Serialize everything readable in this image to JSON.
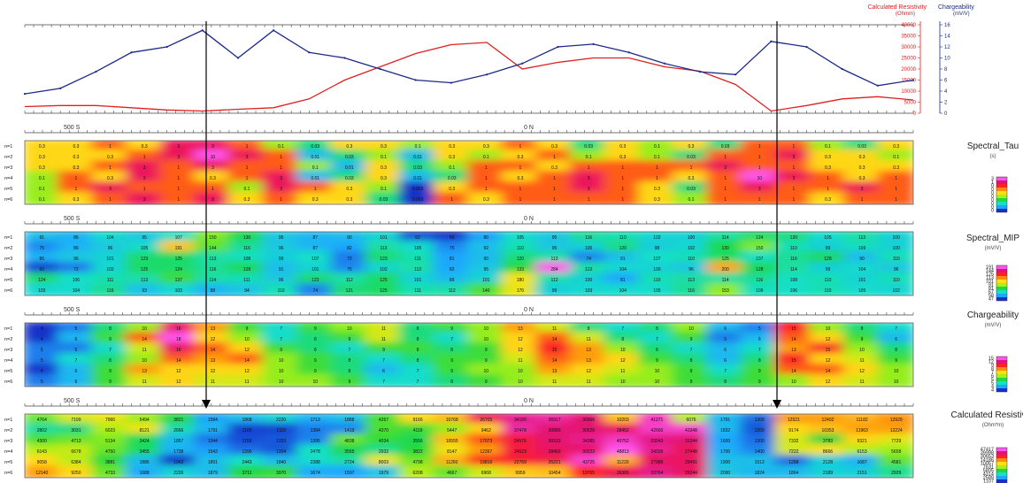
{
  "chart_data": [
    {
      "type": "line",
      "panel": "profile",
      "x": [
        0,
        4,
        8,
        12,
        16,
        20,
        24,
        28,
        32,
        36,
        40,
        44,
        48,
        52,
        56,
        60,
        64,
        68,
        72,
        76,
        80,
        84,
        88,
        92,
        96,
        100
      ],
      "series": [
        {
          "name": "Calculated Resistivity (Ohmm)",
          "color": "#e02020",
          "axis": "left",
          "values": [
            3000,
            3500,
            3500,
            2500,
            1500,
            1000,
            1800,
            2500,
            6500,
            15000,
            21000,
            27000,
            31000,
            32000,
            20000,
            23000,
            25000,
            25000,
            21000,
            19000,
            13000,
            1000,
            3500,
            6500,
            7500,
            6000
          ]
        },
        {
          "name": "Chargeability (mV/V)",
          "color": "#1a2a88",
          "axis": "right",
          "values": [
            3.5,
            4.5,
            7.5,
            11,
            12,
            15,
            10,
            15,
            11,
            10,
            8,
            6,
            5.5,
            7,
            9,
            12,
            12.5,
            11,
            9,
            7.5,
            7,
            13,
            12,
            8,
            5,
            6
          ]
        }
      ],
      "left_axis": {
        "title": "Calculated Resistivity",
        "unit": "(Ohmm)",
        "ticks": [
          0,
          5000,
          10000,
          15000,
          20000,
          25000,
          30000,
          35000,
          40000
        ],
        "ylim": [
          0,
          40000
        ]
      },
      "right_axis": {
        "title": "Chargeability",
        "unit": "(mV/V)",
        "ticks": [
          0,
          2,
          4,
          6,
          8,
          10,
          12,
          14,
          16
        ],
        "ylim": [
          0,
          16
        ]
      }
    },
    {
      "type": "heatmap",
      "panel": "Spectral_Tau",
      "title": "Spectral_Tau",
      "unit": "(s)",
      "station_labels": [
        "500 S",
        "0 N"
      ],
      "rows": [
        "n=1",
        "n=2",
        "n=3",
        "n=4",
        "n=5",
        "n=6"
      ],
      "colorbar_ticks": [
        "3",
        "1",
        "0",
        "0",
        "0",
        "0",
        "0",
        "0",
        "0",
        "0"
      ],
      "cells": [
        [
          0.3,
          0.3,
          1,
          0.3,
          3,
          3,
          1,
          0.1,
          0.03,
          0.3,
          0.3,
          0.1,
          0.3,
          0.3,
          1,
          0.3,
          0.03,
          0.3,
          0.1,
          0.3,
          0.03,
          1,
          1,
          0.1,
          0.03,
          0.3
        ],
        [
          0.3,
          0.3,
          0.3,
          1,
          3,
          10,
          3,
          1,
          0.01,
          0.03,
          0.1,
          0.01,
          0.3,
          0.1,
          0.3,
          1,
          0.1,
          0.3,
          0.1,
          0.03,
          1,
          1,
          3,
          0.3,
          0.3,
          0.1
        ],
        [
          0.3,
          0.3,
          1,
          3,
          1,
          3,
          1,
          1,
          0.1,
          0.01,
          0.3,
          0.03,
          0.1,
          1,
          1,
          0.3,
          1,
          1,
          1,
          1,
          3,
          1,
          1,
          0.3,
          0.3,
          0.3
        ],
        [
          0.1,
          1,
          0.3,
          3,
          1,
          0.3,
          1,
          3,
          0.01,
          0.03,
          0.3,
          0.01,
          0.03,
          1,
          0.3,
          1,
          3,
          1,
          1,
          0.3,
          1,
          10,
          3,
          1,
          0.3,
          1
        ],
        [
          0.1,
          1,
          3,
          1,
          1,
          1,
          0.1,
          3,
          1,
          0.3,
          0.1,
          0.003,
          0.3,
          1,
          1,
          1,
          3,
          1,
          0.3,
          0.03,
          1,
          3,
          1,
          1,
          3,
          1
        ],
        [
          0.1,
          0.3,
          1,
          3,
          1,
          3,
          0.3,
          1,
          0.3,
          0.3,
          0.03,
          0.003,
          1,
          0.3,
          1,
          1,
          1,
          1,
          0.3,
          0.1,
          1,
          1,
          1,
          0.3,
          1,
          1
        ]
      ]
    },
    {
      "type": "heatmap",
      "panel": "Spectral_MIP",
      "title": "Spectral_MIP",
      "unit": "(mV/V)",
      "station_labels": [
        "500 S",
        "0 N"
      ],
      "rows": [
        "n=1",
        "n=2",
        "n=3",
        "n=4",
        "n=5",
        "n=6"
      ],
      "colorbar_ticks": [
        "191",
        "144",
        "125",
        "113",
        "101",
        "91",
        "81",
        "67",
        "58",
        "47"
      ],
      "cells": [
        [
          91,
          86,
          104,
          95,
          107,
          150,
          130,
          95,
          87,
          90,
          101,
          62,
          56,
          80,
          105,
          95,
          116,
          110,
          102,
          100,
          114,
          124,
          120,
          105,
          113,
          100
        ],
        [
          75,
          86,
          96,
          105,
          191,
          144,
          116,
          96,
          87,
          82,
          113,
          105,
          75,
          92,
          110,
          95,
          100,
          120,
          98,
          102,
          130,
          150,
          110,
          99,
          109,
          100
        ],
        [
          86,
          96,
          101,
          123,
          125,
          113,
          108,
          99,
          107,
          72,
          123,
          111,
          81,
          90,
          120,
          113,
          74,
          91,
          107,
          110,
          125,
          107,
          116,
          128,
          90,
          110
        ],
        [
          60,
          72,
          102,
          125,
          124,
          116,
          128,
          91,
          101,
          75,
          102,
          113,
          82,
          95,
          133,
          284,
          113,
          104,
          100,
          96,
          200,
          128,
          114,
          99,
          104,
          96
        ],
        [
          124,
          106,
          111,
          113,
          137,
          114,
          111,
          96,
          123,
          112,
          125,
          101,
          89,
          101,
          180,
          112,
          100,
          81,
          110,
          113,
          114,
          116,
          108,
          110,
          101,
          110
        ],
        [
          103,
          104,
          116,
          93,
          103,
          88,
          94,
          110,
          74,
          121,
          125,
          111,
          112,
          140,
          176,
          99,
          103,
          104,
          105,
          116,
          153,
          109,
          106,
          110,
          105,
          102
        ]
      ]
    },
    {
      "type": "heatmap",
      "panel": "Chargeability",
      "title": "Chargeability",
      "unit": "(mV/V)",
      "station_labels": [
        "500 S",
        "0 N"
      ],
      "rows": [
        "n=1",
        "n=2",
        "n=3",
        "n=4",
        "n=5",
        "n=6"
      ],
      "colorbar_ticks": [
        "15",
        "12",
        "9",
        "8",
        "7",
        "6",
        "5",
        "5",
        "4",
        "4"
      ],
      "cells": [
        [
          4,
          5,
          8,
          10,
          16,
          13,
          9,
          7,
          9,
          10,
          11,
          8,
          9,
          10,
          13,
          11,
          8,
          7,
          8,
          10,
          6,
          5,
          15,
          10,
          8,
          7
        ],
        [
          4,
          6,
          9,
          14,
          18,
          12,
          10,
          7,
          8,
          9,
          11,
          8,
          7,
          10,
          12,
          14,
          11,
          8,
          7,
          9,
          5,
          6,
          14,
          12,
          9,
          6
        ],
        [
          5,
          5,
          7,
          11,
          16,
          14,
          12,
          9,
          8,
          7,
          9,
          9,
          8,
          9,
          12,
          15,
          13,
          10,
          8,
          7,
          6,
          7,
          13,
          15,
          10,
          8
        ],
        [
          5,
          7,
          8,
          10,
          14,
          13,
          14,
          10,
          9,
          8,
          7,
          8,
          9,
          9,
          11,
          14,
          13,
          12,
          9,
          8,
          6,
          8,
          15,
          12,
          11,
          9
        ],
        [
          4,
          6,
          9,
          13,
          12,
          12,
          12,
          10,
          9,
          8,
          6,
          7,
          9,
          10,
          10,
          13,
          12,
          11,
          10,
          9,
          7,
          9,
          14,
          14,
          12,
          10
        ],
        [
          5,
          6,
          9,
          11,
          12,
          11,
          11,
          10,
          10,
          9,
          7,
          7,
          8,
          9,
          10,
          11,
          11,
          10,
          10,
          9,
          8,
          9,
          10,
          12,
          11,
          10
        ]
      ]
    },
    {
      "type": "heatmap",
      "panel": "Calculated Resistivity",
      "title": "Calculated Resistivity",
      "unit": "(Ohm*m)",
      "station_labels": [
        "500 S",
        "0 N"
      ],
      "rows": [
        "n=1",
        "n=2",
        "n=3",
        "n=4",
        "n=5",
        "n=6"
      ],
      "colorbar_ticks": [
        "47417",
        "39998",
        "30653",
        "14186",
        "10057",
        "7631",
        "5805",
        "4314",
        "2589",
        "1107"
      ],
      "cells": [
        [
          4764,
          7199,
          7966,
          5494,
          3821,
          1584,
          1868,
          2220,
          1713,
          1888,
          4267,
          9166,
          10768,
          26705,
          34155,
          36917,
          30966,
          10203,
          41271,
          6076,
          1791,
          1300,
          12521,
          12492,
          11182,
          12929
        ],
        [
          2802,
          3031,
          6023,
          8121,
          2666,
          1791,
          1105,
          1119,
          1384,
          1419,
          4370,
          4119,
          5447,
          9462,
          37478,
          30885,
          30526,
          28452,
          42666,
          43348,
          1832,
          1200,
          9174,
          10353,
          11963,
          12224
        ],
        [
          4300,
          4713,
          5134,
          3424,
          1857,
          1344,
          1159,
          1203,
          1395,
          4838,
          4034,
          3556,
          10555,
          17073,
          24576,
          30533,
          34385,
          40752,
          33243,
          31244,
          1600,
          1300,
          7332,
          3783,
          9321,
          7729
        ],
        [
          6143,
          6678,
          4750,
          3455,
          1738,
          1543,
          1295,
          1204,
          2478,
          3565,
          2932,
          3822,
          8147,
          12397,
          24523,
          28460,
          30223,
          48813,
          34939,
          27448,
          1700,
          1400,
          7222,
          8666,
          6153,
          5658
        ],
        [
          9058,
          6384,
          3881,
          1886,
          1043,
          1891,
          2443,
          1840,
          2388,
          2724,
          8003,
          4798,
          11260,
          19816,
          22769,
          25221,
          43725,
          11220,
          27988,
          28491,
          1900,
          1912,
          1288,
          2128,
          1687,
          4581
        ],
        [
          12140,
          9250,
          4733,
          1688,
          2226,
          1879,
          3711,
          3970,
          1674,
          1597,
          1979,
          6208,
          4667,
          6968,
          9959,
          10454,
          19765,
          26365,
          33764,
          28244,
          2000,
          1824,
          1864,
          2189,
          2151,
          2929
        ]
      ]
    }
  ]
}
